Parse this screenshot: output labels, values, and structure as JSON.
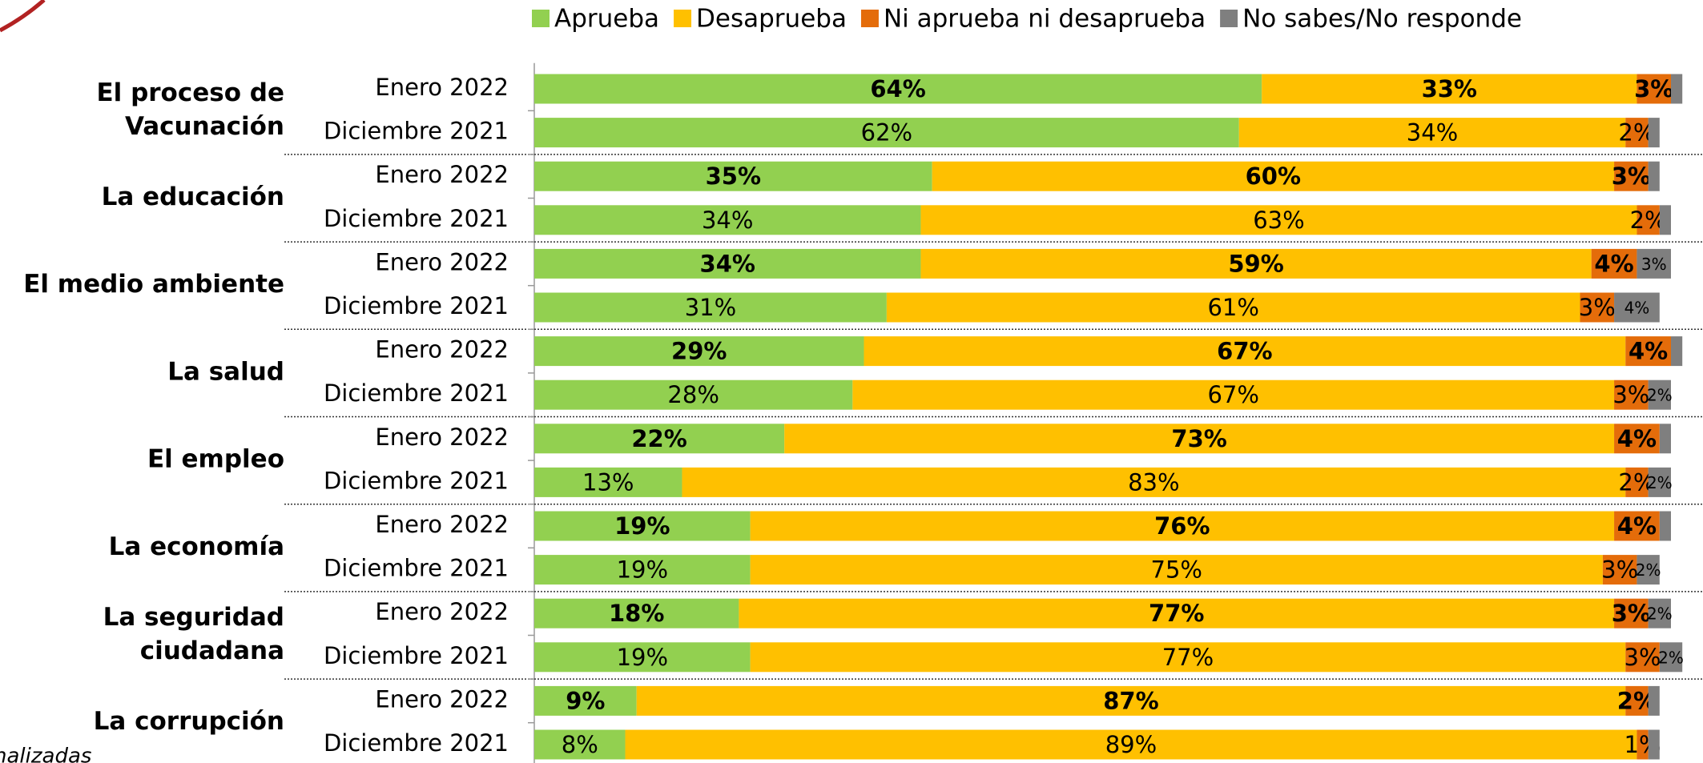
{
  "chart_data": {
    "type": "stacked-bar-horizontal",
    "groups": [
      [
        "El proceso de",
        "Vacunación"
      ],
      [
        "La educación"
      ],
      [
        "El medio ambiente"
      ],
      [
        "La salud"
      ],
      [
        "El empleo"
      ],
      [
        "La economía"
      ],
      [
        "La seguridad",
        "ciudadana"
      ],
      [
        "La corrupción"
      ]
    ],
    "categories": [
      "Enero 2022",
      "Diciembre 2021",
      "Enero 2022",
      "Diciembre 2021",
      "Enero 2022",
      "Diciembre 2021",
      "Enero 2022",
      "Diciembre 2021",
      "Enero 2022",
      "Diciembre 2021",
      "Enero 2022",
      "Diciembre 2021",
      "Enero 2022",
      "Diciembre 2021",
      "Enero 2022",
      "Diciembre 2021"
    ],
    "xlim": [
      0,
      100
    ],
    "legend": "top-right",
    "series": [
      {
        "name": "Aprueba",
        "color": "#92d050",
        "values": [
          64,
          62,
          35,
          34,
          34,
          31,
          29,
          28,
          22,
          13,
          19,
          19,
          18,
          19,
          9,
          8
        ],
        "value_labels": [
          "64%",
          "62%",
          "35%",
          "34%",
          "34%",
          "31%",
          "29%",
          "28%",
          "22%",
          "13%",
          "19%",
          "19%",
          "18%",
          "19%",
          "9%",
          "8%"
        ]
      },
      {
        "name": "Desaprueba",
        "color": "#ffc000",
        "values": [
          33,
          34,
          60,
          63,
          59,
          61,
          67,
          67,
          73,
          83,
          76,
          75,
          77,
          77,
          87,
          89
        ],
        "value_labels": [
          "33%",
          "34%",
          "60%",
          "63%",
          "59%",
          "61%",
          "67%",
          "67%",
          "73%",
          "83%",
          "76%",
          "75%",
          "77%",
          "77%",
          "87%",
          "89%"
        ]
      },
      {
        "name": "Ni aprueba ni desaprueba",
        "color": "#e46c0a",
        "values": [
          3,
          2,
          3,
          2,
          4,
          3,
          4,
          3,
          4,
          2,
          4,
          3,
          3,
          3,
          2,
          1
        ],
        "value_labels": [
          "3%",
          "2%",
          "3%",
          "2%",
          "4%",
          "3%",
          "4%",
          "3%",
          "4%",
          "2%",
          "4%",
          "3%",
          "3%",
          "3%",
          "2%",
          "1%"
        ]
      },
      {
        "name": "No sabes/No responde",
        "color": "#7f7f7f",
        "values": [
          1,
          1,
          1,
          1,
          3,
          4,
          1,
          2,
          1,
          2,
          1,
          2,
          2,
          2,
          1,
          1
        ],
        "value_labels": [
          null,
          null,
          null,
          null,
          "3%",
          "4%",
          null,
          "2%",
          null,
          "2%",
          null,
          "2%",
          "2%",
          "2%",
          null,
          null
        ]
      }
    ],
    "footnote": "nalizadas"
  }
}
